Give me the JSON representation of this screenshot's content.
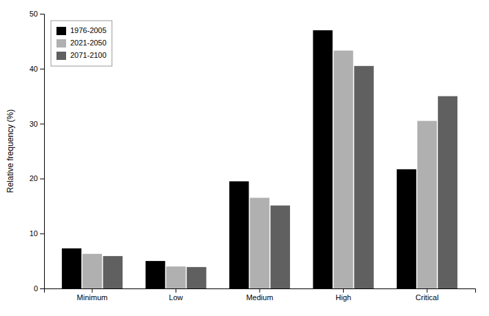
{
  "chart_data": {
    "type": "bar",
    "categories": [
      "Minimum",
      "Low",
      "Medium",
      "High",
      "Critical"
    ],
    "series": [
      {
        "name": "1976-2005",
        "color": "#000000",
        "values": [
          7.3,
          5.0,
          19.5,
          47.0,
          21.7
        ]
      },
      {
        "name": "2021-2050",
        "color": "#b0b0b0",
        "values": [
          6.3,
          4.0,
          16.5,
          43.3,
          30.5
        ]
      },
      {
        "name": "2071-2100",
        "color": "#606060",
        "values": [
          5.9,
          3.9,
          15.1,
          40.5,
          35.0
        ]
      }
    ],
    "ylabel": "Relative frequency (%)",
    "ylim": [
      0,
      50
    ],
    "yticks": [
      0,
      10,
      20,
      30,
      40,
      50
    ],
    "legend": "upper left",
    "grid": false
  }
}
